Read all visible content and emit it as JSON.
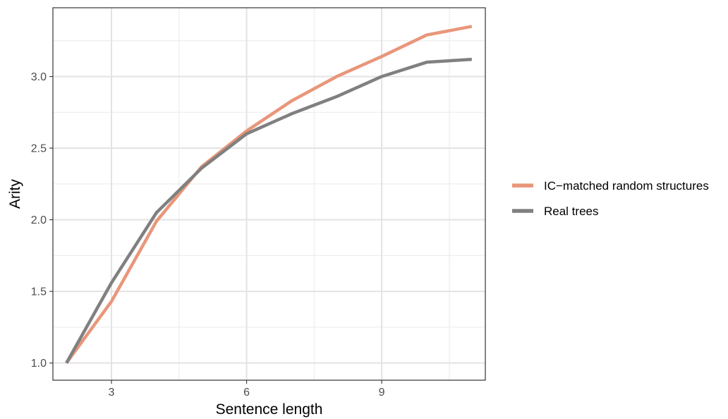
{
  "chart_data": {
    "type": "line",
    "xlabel": "Sentence length",
    "ylabel": "Arity",
    "xlim": [
      1.7,
      11.3
    ],
    "ylim": [
      0.88,
      3.48
    ],
    "x_ticks": [
      3,
      6,
      9
    ],
    "x_tick_labels": [
      "3",
      "6",
      "9"
    ],
    "x_minor_ticks": [
      4.5,
      7.5,
      10.5
    ],
    "y_ticks": [
      1.0,
      1.5,
      2.0,
      2.5,
      3.0
    ],
    "y_tick_labels": [
      "1.0",
      "1.5",
      "2.0",
      "2.5",
      "3.0"
    ],
    "y_minor_ticks": [
      1.25,
      1.75,
      2.25,
      2.75,
      3.25
    ],
    "grid": true,
    "legend_position": "right",
    "x": [
      2,
      3,
      4,
      5,
      6,
      7,
      8,
      9,
      10,
      11
    ],
    "series": [
      {
        "name": "IC−matched random structures",
        "color": "#E9967A",
        "values": [
          1.0,
          1.43,
          1.99,
          2.37,
          2.62,
          2.83,
          3.0,
          3.14,
          3.29,
          3.35
        ]
      },
      {
        "name": "Real trees",
        "color": "#808080",
        "values": [
          1.0,
          1.56,
          2.05,
          2.36,
          2.6,
          2.74,
          2.86,
          3.0,
          3.1,
          3.12
        ]
      }
    ]
  }
}
